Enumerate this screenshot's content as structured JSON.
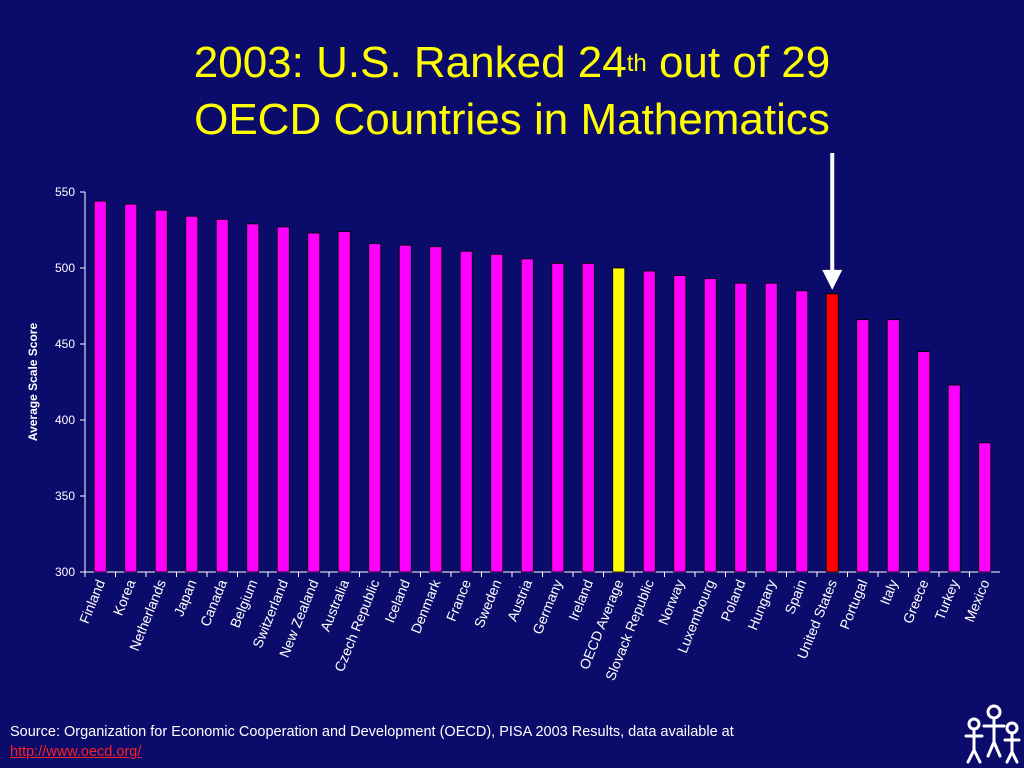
{
  "title": {
    "line1_pre": "2003:  U.S. Ranked 24",
    "line1_sup": "th",
    "line1_post": " out of 29",
    "line2": "OECD Countries in Mathematics"
  },
  "chart_data": {
    "type": "bar",
    "ylabel": "Average Scale Score",
    "ylim": [
      300,
      550
    ],
    "yticks": [
      300,
      350,
      400,
      450,
      500,
      550
    ],
    "grid": false,
    "categories": [
      "Finland",
      "Korea",
      "Netherlands",
      "Japan",
      "Canada",
      "Belgium",
      "Switzerland",
      "New Zealand",
      "Australia",
      "Czech Republic",
      "Iceland",
      "Denmark",
      "France",
      "Sweden",
      "Austria",
      "Germany",
      "Ireland",
      "OECD Average",
      "Slovack Republic",
      "Norway",
      "Luxembourg",
      "Poland",
      "Hungary",
      "Spain",
      "United States",
      "Portugal",
      "Italy",
      "Greece",
      "Turkey",
      "Mexico"
    ],
    "values": [
      544,
      542,
      538,
      534,
      532,
      529,
      527,
      523,
      524,
      516,
      515,
      514,
      511,
      509,
      506,
      503,
      503,
      500,
      498,
      495,
      493,
      490,
      490,
      485,
      483,
      466,
      466,
      445,
      423,
      385
    ],
    "colors": {
      "default": "#ff00ff",
      "OECD Average": "#ffff00",
      "United States": "#ff0000"
    },
    "annotation": {
      "type": "arrow",
      "target": "United States"
    }
  },
  "footer": {
    "source": "Source: Organization for Economic Cooperation and Development (OECD), PISA 2003 Results, data available at",
    "link": "http://www.oecd.org/"
  }
}
